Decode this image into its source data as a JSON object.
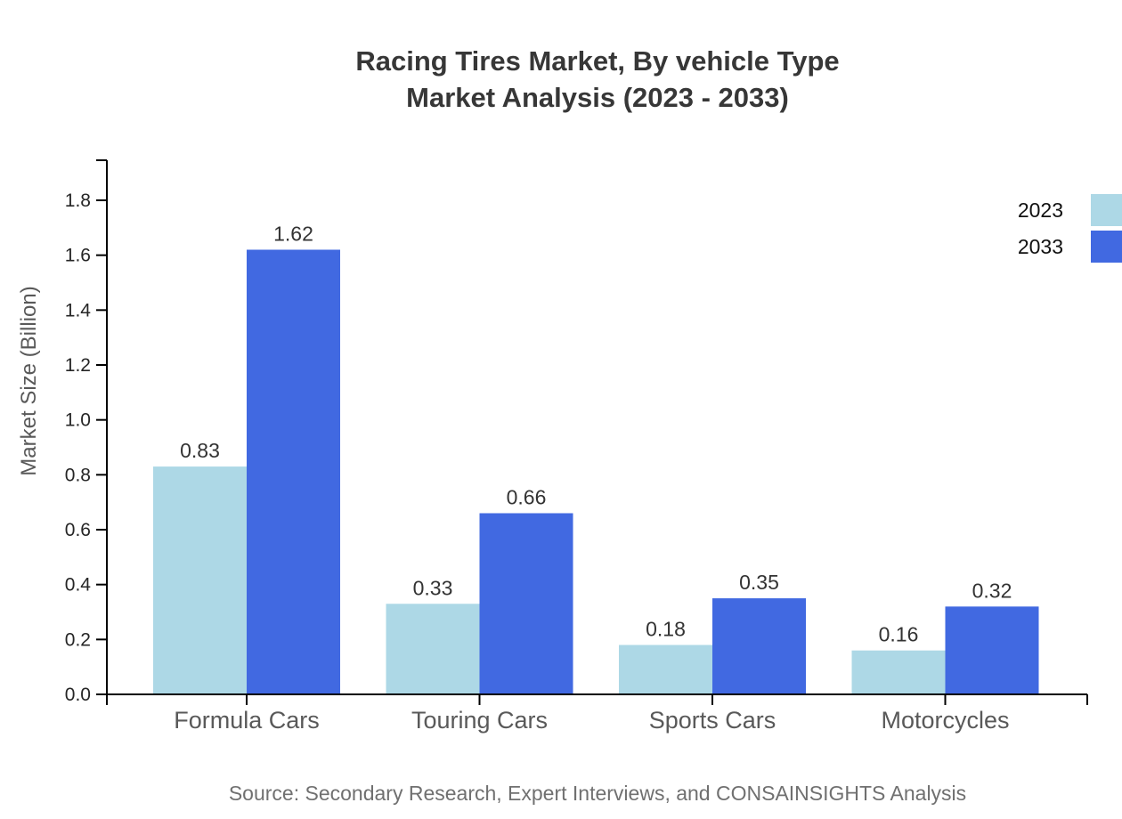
{
  "chart_data": {
    "type": "bar",
    "title_line1": "Racing Tires Market, By vehicle Type",
    "title_line2": "Market Analysis (2023 - 2033)",
    "categories": [
      "Formula Cars",
      "Touring Cars",
      "Sports Cars",
      "Motorcycles"
    ],
    "series": [
      {
        "name": "2023",
        "color": "#ADD8E6",
        "values": [
          0.83,
          0.33,
          0.18,
          0.16
        ]
      },
      {
        "name": "2033",
        "color": "#4169E1",
        "values": [
          1.62,
          0.66,
          0.35,
          0.32
        ]
      }
    ],
    "ylabel": "Market Size (Billion)",
    "yticks": [
      0.0,
      0.2,
      0.4,
      0.6,
      0.8,
      1.0,
      1.2,
      1.4,
      1.6,
      1.8
    ],
    "ylim": [
      0,
      1.95
    ],
    "grid": false,
    "legend_position": "top-right",
    "value_label_decimals": 2,
    "tick_label_decimals": 1,
    "source": "Source: Secondary Research, Expert Interviews, and CONSAINSIGHTS Analysis",
    "axis_color": "#000000",
    "title_color": "#373737",
    "value_label_color": "#333333",
    "category_label_color": "#595959",
    "ytick_label_color": "#262626",
    "ylabel_color": "#595959",
    "source_color": "#707070"
  }
}
